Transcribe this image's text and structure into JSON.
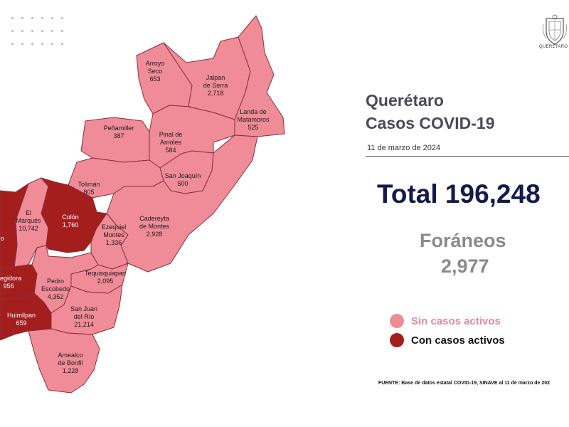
{
  "header": {
    "title_line1": "Querétaro",
    "title_line2": "Casos COVID-19",
    "date": "11 de marzo de 2024",
    "crest_text": "QUERÉTARO"
  },
  "total": "Total 196,248",
  "foraneos": {
    "label": "Foráneos",
    "value": "2,977"
  },
  "legend": {
    "no_active": {
      "label": "Sin casos activos",
      "color": "#f08c98"
    },
    "active": {
      "label": "Con casos activos",
      "color": "#a51e1e"
    }
  },
  "source": "FUENTE: Base de datos estatal COVID-19, SINAVE al 11 de marzo de 202",
  "municipalities": [
    {
      "id": "arroyo-seco",
      "name_lines": [
        "Arroyo",
        "Seco"
      ],
      "cases": "653",
      "active": false
    },
    {
      "id": "jalpan",
      "name_lines": [
        "Jalpan",
        "de Serra"
      ],
      "cases": "2,718",
      "active": false
    },
    {
      "id": "landa",
      "name_lines": [
        "Landa de",
        "Matamoros"
      ],
      "cases": "525",
      "active": false
    },
    {
      "id": "pinal",
      "name_lines": [
        "Pinal de",
        "Amoles"
      ],
      "cases": "584",
      "active": false
    },
    {
      "id": "penamiller",
      "name_lines": [
        "Peñamiller"
      ],
      "cases": "387",
      "active": false
    },
    {
      "id": "san-joaquin",
      "name_lines": [
        "San Joaquín"
      ],
      "cases": "500",
      "active": false
    },
    {
      "id": "toliman",
      "name_lines": [
        "Tolimán"
      ],
      "cases": "805",
      "active": false
    },
    {
      "id": "cadereyta",
      "name_lines": [
        "Cadereyta",
        "de Montes"
      ],
      "cases": "2,928",
      "active": false
    },
    {
      "id": "colon",
      "name_lines": [
        "Colón"
      ],
      "cases": "1,760",
      "active": true
    },
    {
      "id": "el-marques",
      "name_lines": [
        "El",
        "Marqués"
      ],
      "cases": "10,742",
      "active": false
    },
    {
      "id": "ezequiel",
      "name_lines": [
        "Ezequiel",
        "Montes"
      ],
      "cases": "1,336",
      "active": false
    },
    {
      "id": "tequisquiapan",
      "name_lines": [
        "Tequisquiapan"
      ],
      "cases": "2,095",
      "active": false
    },
    {
      "id": "pedro-escobedo",
      "name_lines": [
        "Pedro",
        "Escobedo"
      ],
      "cases": "4,352",
      "active": false
    },
    {
      "id": "san-juan",
      "name_lines": [
        "San Juan",
        "del Río"
      ],
      "cases": "21,214",
      "active": false
    },
    {
      "id": "huimilpan",
      "name_lines": [
        "Huimilpan"
      ],
      "cases": "659",
      "active": true
    },
    {
      "id": "amealco",
      "name_lines": [
        "Amealco",
        "de Bonfil"
      ],
      "cases": "1,228",
      "active": false
    },
    {
      "id": "corregidora",
      "name_lines": [
        "rregidora"
      ],
      "cases": "956",
      "active": true
    },
    {
      "id": "queretaro",
      "name_lines": [
        "o"
      ],
      "cases": "",
      "active": true
    }
  ]
}
